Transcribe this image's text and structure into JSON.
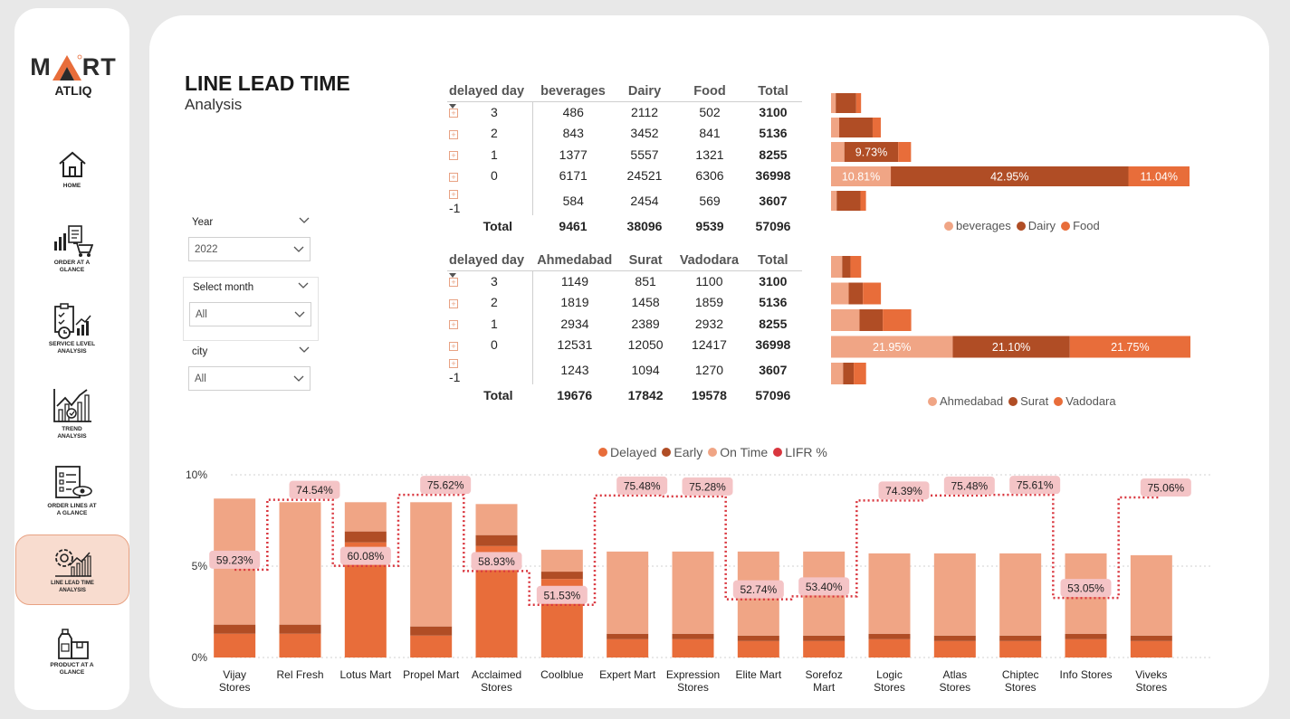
{
  "brand": {
    "word_left": "M",
    "word_right": "RT",
    "sub": "ATLIQ"
  },
  "nav": [
    {
      "id": "home",
      "label": "HOME",
      "icon": "home-icon"
    },
    {
      "id": "order-at-a-glance",
      "label": "ORDER AT A GLANCE",
      "icon": "cart-chart-icon"
    },
    {
      "id": "service-level",
      "label": "SERVICE LEVEL ANALYSIS",
      "icon": "clipboard-clock-icon"
    },
    {
      "id": "trend",
      "label": "TREND ANALYSIS",
      "icon": "trend-chart-icon"
    },
    {
      "id": "order-lines",
      "label": "ORDER LINES AT A GLANCE",
      "icon": "checklist-eye-icon"
    },
    {
      "id": "line-lead-time",
      "label": "LINE LEAD TIME ANALYSIS",
      "icon": "gear-chart-icon",
      "active": true
    },
    {
      "id": "product",
      "label": "PRODUCT AT A GLANCE",
      "icon": "product-box-icon"
    }
  ],
  "header": {
    "title": "LINE LEAD TIME",
    "subtitle": "Analysis"
  },
  "filters": {
    "year": {
      "label": "Year",
      "value": "2022"
    },
    "month": {
      "label": "Select month",
      "value": "All"
    },
    "city": {
      "label": "city",
      "value": "All"
    }
  },
  "colors": {
    "beverages": "#f0a585",
    "dairy": "#b04d25",
    "food": "#e86d3a",
    "lifr": "#d9363e",
    "label_bg": "#f4c4c6"
  },
  "category_matrix": {
    "columns": [
      "delayed day",
      "beverages",
      "Dairy",
      "Food",
      "Total"
    ],
    "rows": [
      {
        "delayed": "3",
        "beverages": 486,
        "dairy": 2112,
        "food": 502,
        "total": 3100
      },
      {
        "delayed": "2",
        "beverages": 843,
        "dairy": 3452,
        "food": 841,
        "total": 5136
      },
      {
        "delayed": "1",
        "beverages": 1377,
        "dairy": 5557,
        "food": 1321,
        "total": 8255
      },
      {
        "delayed": "0",
        "beverages": 6171,
        "dairy": 24521,
        "food": 6306,
        "total": 36998
      },
      {
        "delayed": "-1",
        "beverages": 584,
        "dairy": 2454,
        "food": 569,
        "total": 3607
      }
    ],
    "total_label": "Total",
    "totals": {
      "beverages": 9461,
      "dairy": 38096,
      "food": 9539,
      "total": 57096
    }
  },
  "city_matrix": {
    "columns": [
      "delayed day",
      "Ahmedabad",
      "Surat",
      "Vadodara",
      "Total"
    ],
    "rows": [
      {
        "delayed": "3",
        "ahmedabad": 1149,
        "surat": 851,
        "vadodara": 1100,
        "total": 3100
      },
      {
        "delayed": "2",
        "ahmedabad": 1819,
        "surat": 1458,
        "vadodara": 1859,
        "total": 5136
      },
      {
        "delayed": "1",
        "ahmedabad": 2934,
        "surat": 2389,
        "vadodara": 2932,
        "total": 8255
      },
      {
        "delayed": "0",
        "ahmedabad": 12531,
        "surat": 12050,
        "vadodara": 12417,
        "total": 36998
      },
      {
        "delayed": "-1",
        "ahmedabad": 1243,
        "surat": 1094,
        "vadodara": 1270,
        "total": 3607
      }
    ],
    "total_label": "Total",
    "totals": {
      "ahmedabad": 19676,
      "surat": 17842,
      "vadodara": 19578,
      "total": 57096
    }
  },
  "chart_data": [
    {
      "type": "bar",
      "orientation": "horizontal-stacked",
      "categories": [
        "3",
        "2",
        "1",
        "0",
        "-1"
      ],
      "series": [
        {
          "name": "beverages",
          "values": [
            486,
            843,
            1377,
            6171,
            584
          ]
        },
        {
          "name": "Dairy",
          "values": [
            2112,
            3452,
            5557,
            24521,
            2454
          ]
        },
        {
          "name": "Food",
          "values": [
            502,
            841,
            1321,
            6306,
            569
          ]
        }
      ],
      "data_labels": [
        {
          "row": "1",
          "series": "Dairy",
          "text": "9.73%"
        },
        {
          "row": "0",
          "series": "beverages",
          "text": "10.81%"
        },
        {
          "row": "0",
          "series": "Dairy",
          "text": "42.95%"
        },
        {
          "row": "0",
          "series": "Food",
          "text": "11.04%"
        }
      ],
      "legend": "bottom"
    },
    {
      "type": "bar",
      "orientation": "horizontal-stacked",
      "categories": [
        "3",
        "2",
        "1",
        "0",
        "-1"
      ],
      "series": [
        {
          "name": "Ahmedabad",
          "values": [
            1149,
            1819,
            2934,
            12531,
            1243
          ]
        },
        {
          "name": "Surat",
          "values": [
            851,
            1458,
            2389,
            12050,
            1094
          ]
        },
        {
          "name": "Vadodara",
          "values": [
            1100,
            1859,
            2932,
            12417,
            1270
          ]
        }
      ],
      "data_labels": [
        {
          "row": "0",
          "series": "Ahmedabad",
          "text": "21.95%"
        },
        {
          "row": "0",
          "series": "Surat",
          "text": "21.10%"
        },
        {
          "row": "0",
          "series": "Vadodara",
          "text": "21.75%"
        }
      ],
      "legend": "bottom"
    },
    {
      "type": "bar",
      "orientation": "vertical-stacked-with-line",
      "categories": [
        "Vijay Stores",
        "Rel Fresh",
        "Lotus Mart",
        "Propel Mart",
        "Acclaimed Stores",
        "Coolblue",
        "Expert Mart",
        "Expression Stores",
        "Elite Mart",
        "Sorefoz Mart",
        "Logic Stores",
        "Atlas Stores",
        "Chiptec Stores",
        "Info Stores",
        "Viveks Stores"
      ],
      "series": [
        {
          "name": "Delayed",
          "color": "#e86d3a",
          "values": [
            1.3,
            1.3,
            6.3,
            1.2,
            6.1,
            4.3,
            1.0,
            1.0,
            0.9,
            0.9,
            1.0,
            0.9,
            0.9,
            1.0,
            0.9
          ]
        },
        {
          "name": "Early",
          "color": "#b04d25",
          "values": [
            0.5,
            0.5,
            0.6,
            0.5,
            0.6,
            0.4,
            0.3,
            0.3,
            0.3,
            0.3,
            0.3,
            0.3,
            0.3,
            0.3,
            0.3
          ]
        },
        {
          "name": "On Time",
          "color": "#f0a585",
          "values": [
            6.9,
            6.7,
            1.6,
            6.8,
            1.7,
            1.2,
            4.5,
            4.5,
            4.6,
            4.6,
            4.4,
            4.5,
            4.5,
            4.4,
            4.4
          ]
        }
      ],
      "line": {
        "name": "LIFR %",
        "color": "#d9363e",
        "values": [
          59.23,
          74.54,
          60.08,
          75.62,
          58.93,
          51.53,
          75.48,
          75.28,
          52.74,
          53.4,
          74.39,
          75.48,
          75.61,
          53.05,
          75.06
        ],
        "labels": [
          "59.23%",
          "74.54%",
          "60.08%",
          "75.62%",
          "58.93%",
          "51.53%",
          "75.48%",
          "75.28%",
          "52.74%",
          "53.40%",
          "74.39%",
          "75.48%",
          "75.61%",
          "53.05%",
          "75.06%"
        ]
      },
      "y_ticks": [
        "10%",
        "5%",
        "0%"
      ],
      "ylim": [
        0,
        10
      ],
      "line_ylim": [
        40,
        80
      ],
      "legend": "top",
      "grid": true
    }
  ]
}
